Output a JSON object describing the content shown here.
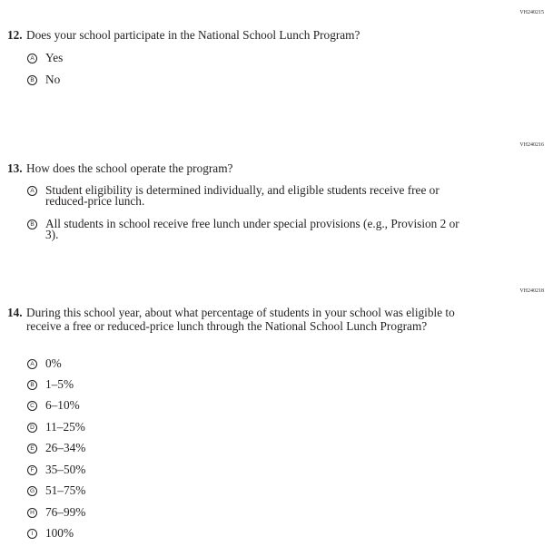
{
  "questions": [
    {
      "id": "VH240215",
      "number": "12.",
      "text": "Does your school participate in the National School Lunch Program?",
      "options": [
        {
          "letter": "A",
          "label": "Yes"
        },
        {
          "letter": "B",
          "label": "No"
        }
      ]
    },
    {
      "id": "VH240216",
      "number": "13.",
      "text": "How does the school operate the program?",
      "options": [
        {
          "letter": "A",
          "label": "Student eligibility is determined individually, and eligible students receive free or reduced-price lunch."
        },
        {
          "letter": "B",
          "label": "All students in school receive free lunch under special provisions (e.g., Provision 2 or 3)."
        }
      ]
    },
    {
      "id": "VH240218",
      "number": "14.",
      "text": "During this school year, about what percentage of students in your school was eligible to receive a free or reduced-price lunch through the National School Lunch Program?",
      "options": [
        {
          "letter": "A",
          "label": "0%"
        },
        {
          "letter": "B",
          "label": "1–5%"
        },
        {
          "letter": "C",
          "label": "6–10%"
        },
        {
          "letter": "D",
          "label": "11–25%"
        },
        {
          "letter": "E",
          "label": "26–34%"
        },
        {
          "letter": "F",
          "label": "35–50%"
        },
        {
          "letter": "G",
          "label": "51–75%"
        },
        {
          "letter": "H",
          "label": "76–99%"
        },
        {
          "letter": "I",
          "label": "100%"
        }
      ]
    }
  ]
}
